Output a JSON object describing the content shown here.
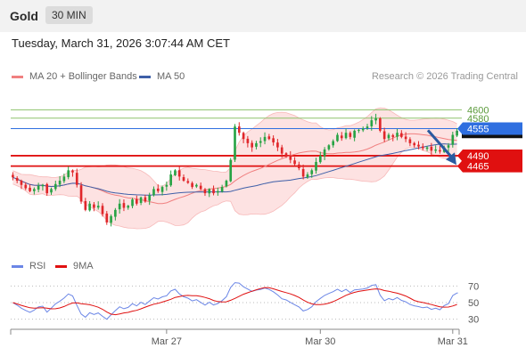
{
  "header": {
    "symbol": "Gold",
    "timeframe": "30 MIN"
  },
  "datetime": "Tuesday, March 31, 2026 3:07:44 AM CET",
  "legend": {
    "ma20": "MA 20 + Bollinger Bands",
    "ma50": "MA 50"
  },
  "copyright": "Research © 2026 Trading Central",
  "colors": {
    "bull": "#27a344",
    "bear": "#e0262a",
    "ma20": "#f08080",
    "band_fill": "#fde2e2",
    "ma50": "#3e5fa8",
    "resistance": "#8dc26b",
    "pivot": "#2f6fe0",
    "support": "#e01010",
    "rsi": "#6b86e6",
    "rsi_ma": "#e01010"
  },
  "chart_data": [
    {
      "type": "candlestick",
      "ylim": [
        4270,
        4650
      ],
      "x_ticks": [
        "Mar 27",
        "Mar 30",
        "Mar 31"
      ],
      "last_price": 4547,
      "levels": [
        {
          "label": "4600",
          "value": 4600,
          "role": "resistance"
        },
        {
          "label": "4580",
          "value": 4580,
          "role": "resistance"
        },
        {
          "label": "4555",
          "value": 4555,
          "role": "pivot"
        },
        {
          "label": "4490",
          "value": 4490,
          "role": "support"
        },
        {
          "label": "4465",
          "value": 4465,
          "role": "support"
        }
      ],
      "forecast_arrow": {
        "from": 4551,
        "to": 4468
      },
      "close_series": [
        4438,
        4430,
        4420,
        4412,
        4405,
        4410,
        4418,
        4420,
        4400,
        4410,
        4422,
        4430,
        4440,
        4455,
        4450,
        4420,
        4380,
        4360,
        4375,
        4365,
        4370,
        4350,
        4330,
        4345,
        4360,
        4375,
        4365,
        4370,
        4385,
        4375,
        4390,
        4380,
        4395,
        4410,
        4405,
        4415,
        4420,
        4445,
        4455,
        4440,
        4430,
        4425,
        4415,
        4420,
        4410,
        4400,
        4410,
        4400,
        4405,
        4415,
        4430,
        4480,
        4560,
        4545,
        4530,
        4520,
        4510,
        4520,
        4525,
        4535,
        4530,
        4522,
        4510,
        4495,
        4490,
        4480,
        4470,
        4460,
        4440,
        4445,
        4455,
        4475,
        4490,
        4505,
        4515,
        4525,
        4540,
        4532,
        4545,
        4535,
        4550,
        4552,
        4555,
        4560,
        4575,
        4580,
        4550,
        4530,
        4540,
        4535,
        4545,
        4535,
        4530,
        4520,
        4515,
        4512,
        4508,
        4510,
        4502,
        4505,
        4500,
        4510,
        4515,
        4540,
        4550
      ]
    },
    {
      "type": "line",
      "title": "RSI",
      "series": [
        {
          "name": "RSI"
        },
        {
          "name": "9MA"
        }
      ],
      "ylim": [
        20,
        80
      ],
      "y_ticks": [
        70,
        50,
        30
      ]
    }
  ]
}
